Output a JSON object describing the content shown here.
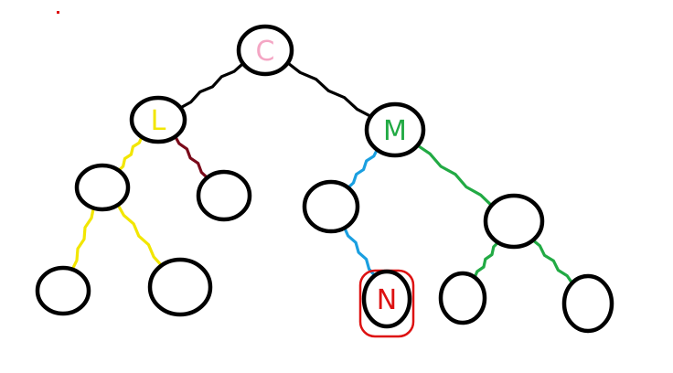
{
  "tree": {
    "nodes": [
      {
        "id": "root",
        "label": "C",
        "label_color": "#f4a6c4"
      },
      {
        "id": "left",
        "label": "L",
        "label_color": "#f2e600"
      },
      {
        "id": "right",
        "label": "M",
        "label_color": "#22aa44"
      },
      {
        "id": "left-left",
        "label": ""
      },
      {
        "id": "left-right",
        "label": ""
      },
      {
        "id": "right-left",
        "label": ""
      },
      {
        "id": "right-right",
        "label": ""
      },
      {
        "id": "left-left-left",
        "label": ""
      },
      {
        "id": "left-left-right",
        "label": ""
      },
      {
        "id": "right-left-right",
        "label": "N",
        "label_color": "#dd1111",
        "highlight_color": "#dd1111"
      },
      {
        "id": "right-right-left",
        "label": ""
      },
      {
        "id": "right-right-right",
        "label": ""
      }
    ],
    "edges": [
      {
        "from": "root",
        "to": "left",
        "color": "#000000"
      },
      {
        "from": "root",
        "to": "right",
        "color": "#000000"
      },
      {
        "from": "left",
        "to": "left-left",
        "color": "#f2e600"
      },
      {
        "from": "left",
        "to": "left-right",
        "color": "#7a0a1a"
      },
      {
        "from": "left-left",
        "to": "left-left-left",
        "color": "#f2e600"
      },
      {
        "from": "left-left",
        "to": "left-left-right",
        "color": "#f2e600"
      },
      {
        "from": "right",
        "to": "right-left",
        "color": "#1a9fe0"
      },
      {
        "from": "right-left",
        "to": "right-left-right",
        "color": "#1a9fe0"
      },
      {
        "from": "right",
        "to": "right-right",
        "color": "#22aa44"
      },
      {
        "from": "right-right",
        "to": "right-right-left",
        "color": "#22aa44"
      },
      {
        "from": "right-right",
        "to": "right-right-right",
        "color": "#22aa44"
      }
    ],
    "stray_mark_color": "#dd1111"
  }
}
